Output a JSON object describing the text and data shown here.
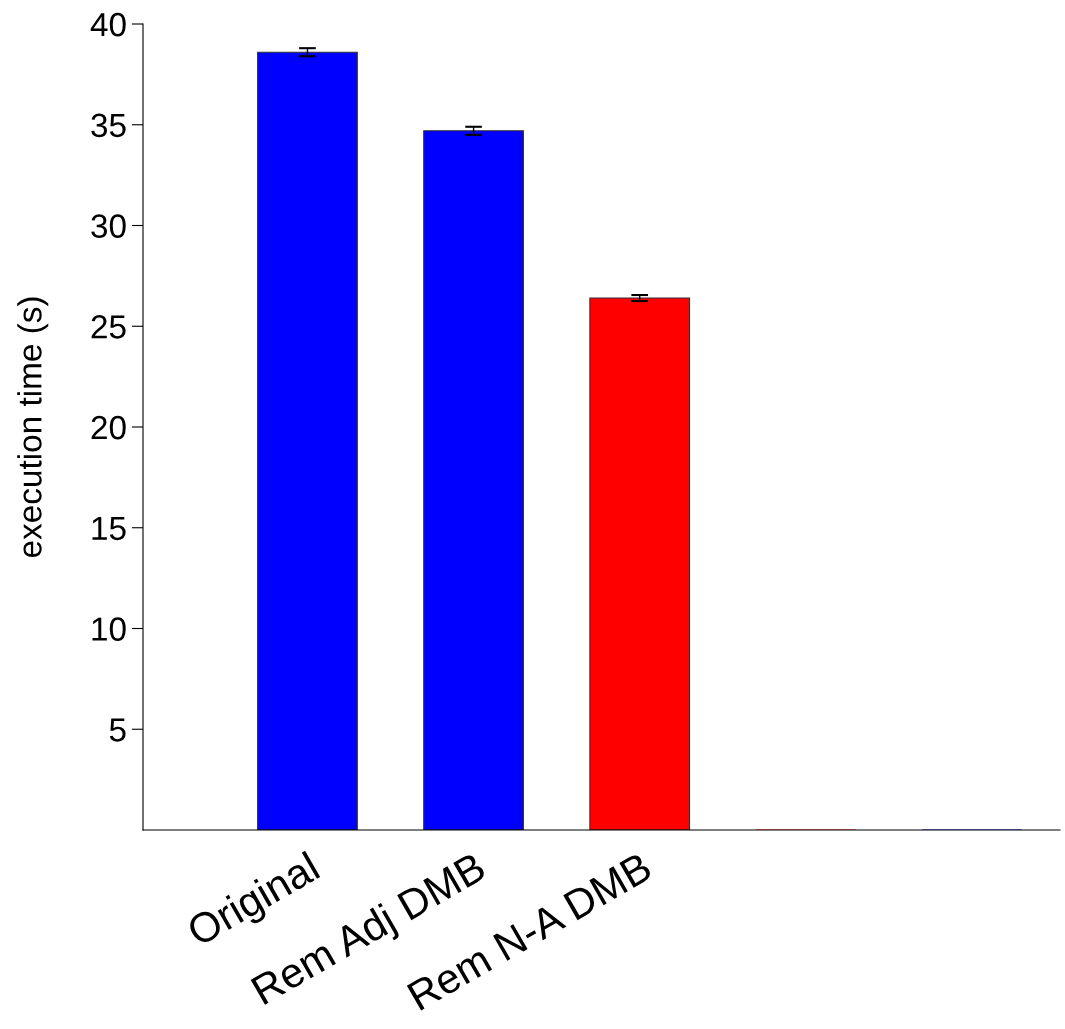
{
  "chart_data": {
    "type": "bar",
    "ylabel": "execution time (s)",
    "categories": [
      "Original",
      "Rem Adj DMB",
      "Rem N-A DMB",
      null,
      null
    ],
    "values": [
      38.6,
      34.7,
      26.4,
      0,
      0
    ],
    "colors": [
      "#0000ff",
      "#0000ff",
      "#ff0000",
      "#ff0000",
      "#0000ff"
    ],
    "errors": [
      0.2,
      0.2,
      0.15,
      null,
      null
    ],
    "ylim": [
      0,
      40
    ],
    "yticks": [
      5,
      10,
      15,
      20,
      25,
      30,
      35,
      40
    ],
    "grid": false,
    "legend": false
  }
}
